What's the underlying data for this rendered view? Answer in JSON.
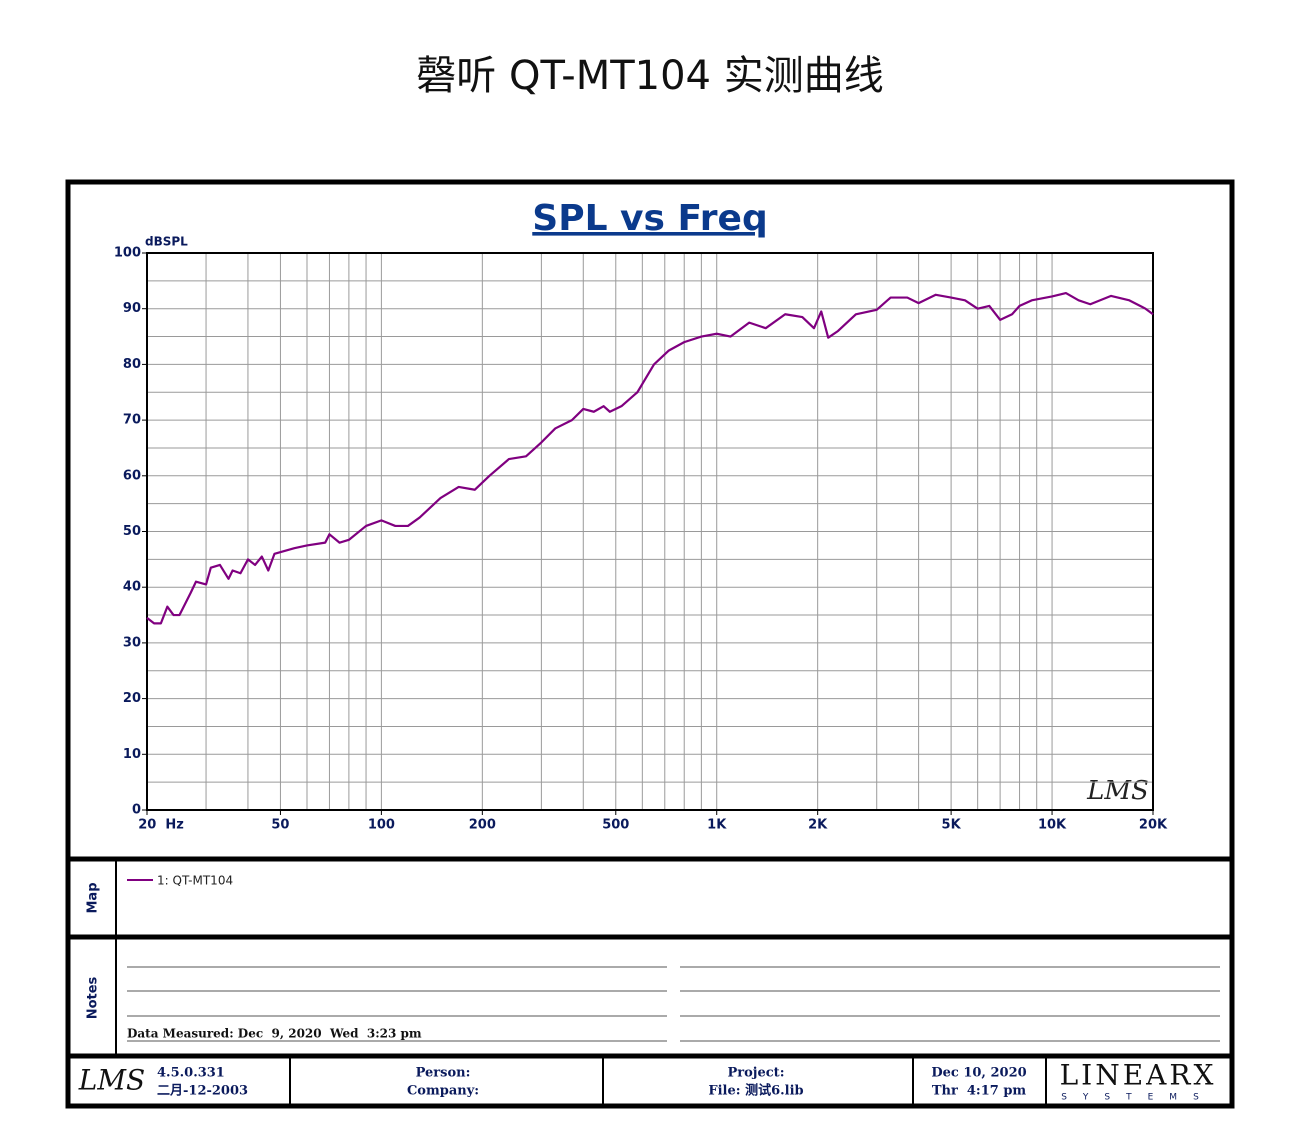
{
  "header": {
    "title": "磬听 QT-MT104 实测曲线"
  },
  "chart_data": {
    "type": "line",
    "title": "SPL vs Freq",
    "y_label": "dBSPL",
    "annotation": "LMS",
    "xscale": "log",
    "grid": true,
    "xlim": [
      20,
      20000
    ],
    "ylim": [
      0,
      100
    ],
    "xticks": [
      {
        "value": 20,
        "label": "20  Hz"
      },
      50,
      100,
      200,
      500,
      {
        "value": 1000,
        "label": "1K"
      },
      {
        "value": 2000,
        "label": "2K"
      },
      {
        "value": 5000,
        "label": "5K"
      },
      {
        "value": 10000,
        "label": "10K"
      },
      {
        "value": 20000,
        "label": "20K"
      }
    ],
    "yticks": [
      0,
      10,
      20,
      30,
      40,
      50,
      60,
      70,
      80,
      90,
      100
    ],
    "xgrid": [
      20,
      30,
      40,
      50,
      60,
      70,
      80,
      90,
      100,
      200,
      300,
      400,
      500,
      600,
      700,
      800,
      900,
      1000,
      2000,
      3000,
      4000,
      5000,
      6000,
      7000,
      8000,
      9000,
      10000,
      20000
    ],
    "ygrid": [
      0,
      5,
      10,
      15,
      20,
      25,
      30,
      35,
      40,
      45,
      50,
      55,
      60,
      65,
      70,
      75,
      80,
      85,
      90,
      95,
      100
    ],
    "x": [
      20,
      21,
      22,
      23,
      24,
      25,
      27,
      28,
      30,
      31,
      33,
      35,
      36,
      38,
      40,
      42,
      44,
      46,
      48,
      55,
      60,
      68,
      70,
      75,
      80,
      90,
      100,
      110,
      120,
      130,
      150,
      170,
      190,
      210,
      240,
      270,
      300,
      330,
      370,
      400,
      430,
      460,
      480,
      520,
      580,
      650,
      720,
      800,
      900,
      1000,
      1100,
      1250,
      1400,
      1600,
      1800,
      1950,
      2050,
      2150,
      2300,
      2600,
      3000,
      3300,
      3700,
      4000,
      4500,
      5000,
      5500,
      6000,
      6500,
      7000,
      7600,
      8000,
      8700,
      10000,
      11000,
      12000,
      13000,
      15000,
      17000,
      19000,
      20000
    ],
    "series": [
      {
        "name": "1: QT-MT104",
        "color": "#800080",
        "values": [
          34.5,
          33.5,
          33.5,
          36.5,
          35,
          35,
          39,
          41,
          40.5,
          43.5,
          44,
          41.5,
          43,
          42.5,
          45,
          44,
          45.5,
          43,
          46,
          47,
          47.5,
          48,
          49.5,
          48,
          48.5,
          51,
          52,
          51,
          51,
          52.5,
          56,
          58,
          57.5,
          60,
          63,
          63.5,
          66,
          68.5,
          70,
          72,
          71.5,
          72.5,
          71.5,
          72.5,
          75,
          80,
          82.5,
          84,
          85,
          85.5,
          85,
          87.5,
          86.5,
          89,
          88.5,
          86.5,
          89.5,
          84.8,
          86,
          89,
          89.8,
          92,
          92,
          91,
          92.5,
          92,
          91.5,
          90,
          90.5,
          88,
          89,
          90.5,
          91.5,
          92.2,
          92.8,
          91.5,
          90.8,
          92.3,
          91.5,
          90,
          89
        ]
      }
    ]
  },
  "map": {
    "label": "Map"
  },
  "notes": {
    "label": "Notes",
    "measured": "Data Measured: Dec  9, 2020  Wed  3:23 pm"
  },
  "footer": {
    "logo": "LMS",
    "version": "4.5.0.331",
    "build_date": "二月-12-2003",
    "person": "Person:",
    "company": "Company:",
    "project": "Project:",
    "file": "File: 测试6.lib",
    "date": "Dec 10, 2020",
    "time": "Thr  4:17 pm",
    "brand": "LINEARX",
    "brand_sub": "SYSTEMS"
  }
}
